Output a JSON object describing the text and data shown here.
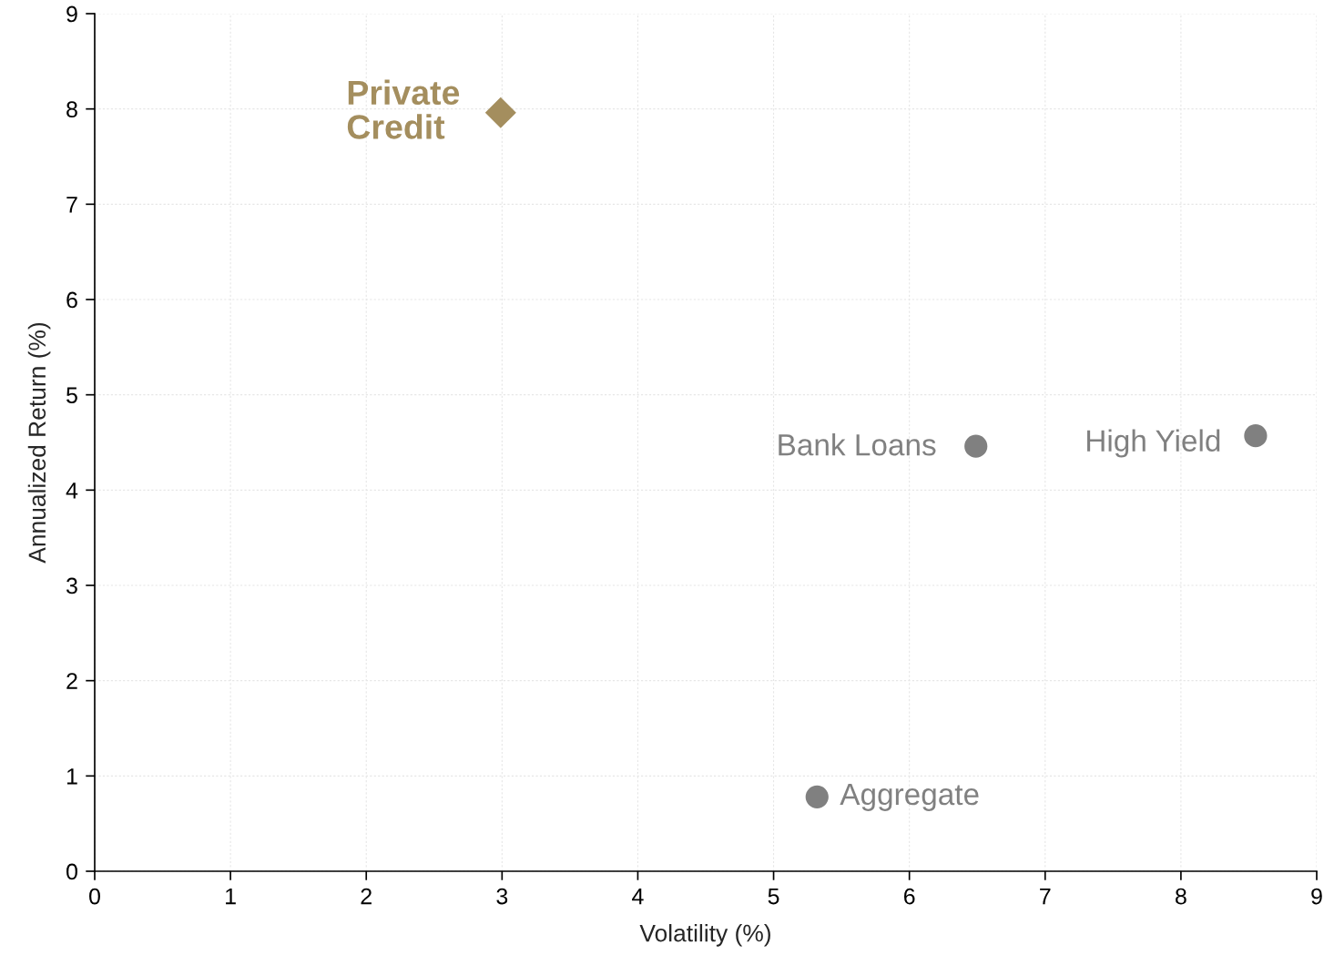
{
  "chart_data": {
    "type": "scatter",
    "xlabel": "Volatility (%)",
    "ylabel": "Annualized Return (%)",
    "xlim": [
      0,
      9
    ],
    "ylim": [
      0,
      9
    ],
    "xticks": [
      0,
      1,
      2,
      3,
      4,
      5,
      6,
      7,
      8,
      9
    ],
    "yticks": [
      0,
      1,
      2,
      3,
      4,
      5,
      6,
      7,
      8,
      9
    ],
    "grid": true,
    "series": [
      {
        "name": "Private\nCredit",
        "color": "#a48e5e",
        "marker": "diamond",
        "x": [
          2.99
        ],
        "values": [
          7.96
        ]
      },
      {
        "name": "Bank Loans",
        "color": "#808080",
        "marker": "circle",
        "x": [
          6.49
        ],
        "values": [
          4.46
        ]
      },
      {
        "name": "High Yield",
        "color": "#808080",
        "marker": "circle",
        "x": [
          8.55
        ],
        "values": [
          4.57
        ]
      },
      {
        "name": "Aggregate",
        "color": "#808080",
        "marker": "circle",
        "x": [
          5.32
        ],
        "values": [
          0.78
        ]
      }
    ]
  }
}
